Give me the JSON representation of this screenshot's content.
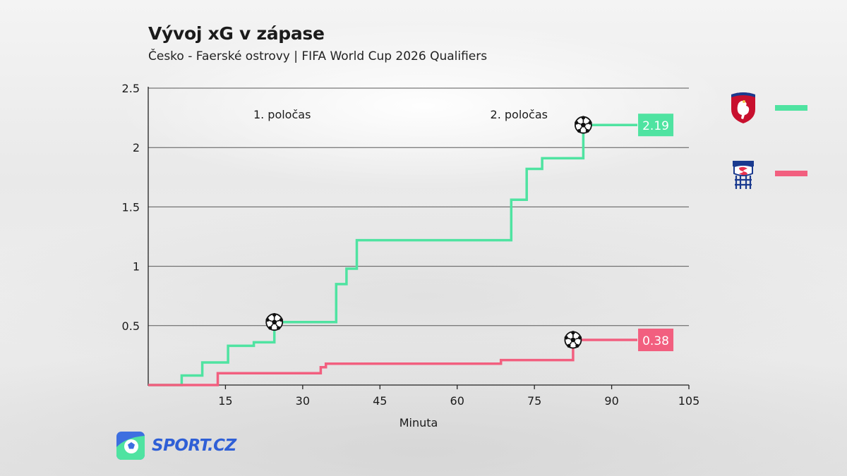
{
  "header": {
    "title": "Vývoj xG v zápase",
    "subtitle": "Česko - Faerské ostrovy | FIFA World Cup 2026 Qualifiers"
  },
  "branding": {
    "logo_text": "SPORT.CZ",
    "logo_color": "#2f5fd6"
  },
  "legend": [
    {
      "team": "Česko",
      "icon": "czech-crest-icon",
      "color": "#4fe3a1"
    },
    {
      "team": "Faerské ostrovy",
      "icon": "faroe-crest-icon",
      "color": "#f25f7f"
    }
  ],
  "chart_data": {
    "type": "line",
    "step": true,
    "xlabel": "Minuta",
    "ylabel": "",
    "xlim": [
      0,
      105
    ],
    "ylim": [
      0,
      2.5
    ],
    "xticks": [
      15,
      30,
      45,
      60,
      75,
      90,
      105
    ],
    "yticks": [
      0.5,
      1,
      1.5,
      2,
      2.5
    ],
    "grid": "horizontal",
    "half_labels": [
      {
        "text": "1. poločas",
        "minute": 26,
        "y": 2.28
      },
      {
        "text": "2. poločas",
        "minute": 72,
        "y": 2.28
      }
    ],
    "series": [
      {
        "color": "#4fe3a1",
        "final_label": "2.19",
        "points": [
          [
            0,
            0
          ],
          [
            6.5,
            0
          ],
          [
            6.5,
            0.08
          ],
          [
            10.5,
            0.08
          ],
          [
            10.5,
            0.19
          ],
          [
            15.5,
            0.19
          ],
          [
            15.5,
            0.33
          ],
          [
            20.5,
            0.33
          ],
          [
            20.5,
            0.36
          ],
          [
            24.5,
            0.36
          ],
          [
            24.5,
            0.53
          ],
          [
            36.5,
            0.53
          ],
          [
            36.5,
            0.85
          ],
          [
            38.5,
            0.85
          ],
          [
            38.5,
            0.98
          ],
          [
            40.5,
            0.98
          ],
          [
            40.5,
            1.22
          ],
          [
            70.5,
            1.22
          ],
          [
            70.5,
            1.56
          ],
          [
            73.5,
            1.56
          ],
          [
            73.5,
            1.82
          ],
          [
            76.5,
            1.82
          ],
          [
            76.5,
            1.91
          ],
          [
            84.5,
            1.91
          ],
          [
            84.5,
            2.19
          ],
          [
            95,
            2.19
          ]
        ],
        "goals": [
          24.5,
          84.5
        ]
      },
      {
        "color": "#f25f7f",
        "final_label": "0.38",
        "points": [
          [
            0,
            0
          ],
          [
            13.5,
            0
          ],
          [
            13.5,
            0.1
          ],
          [
            33.5,
            0.1
          ],
          [
            33.5,
            0.15
          ],
          [
            34.5,
            0.15
          ],
          [
            34.5,
            0.18
          ],
          [
            68.5,
            0.18
          ],
          [
            68.5,
            0.21
          ],
          [
            82.5,
            0.21
          ],
          [
            82.5,
            0.38
          ],
          [
            95,
            0.38
          ]
        ],
        "goals": [
          82.5
        ]
      }
    ]
  }
}
